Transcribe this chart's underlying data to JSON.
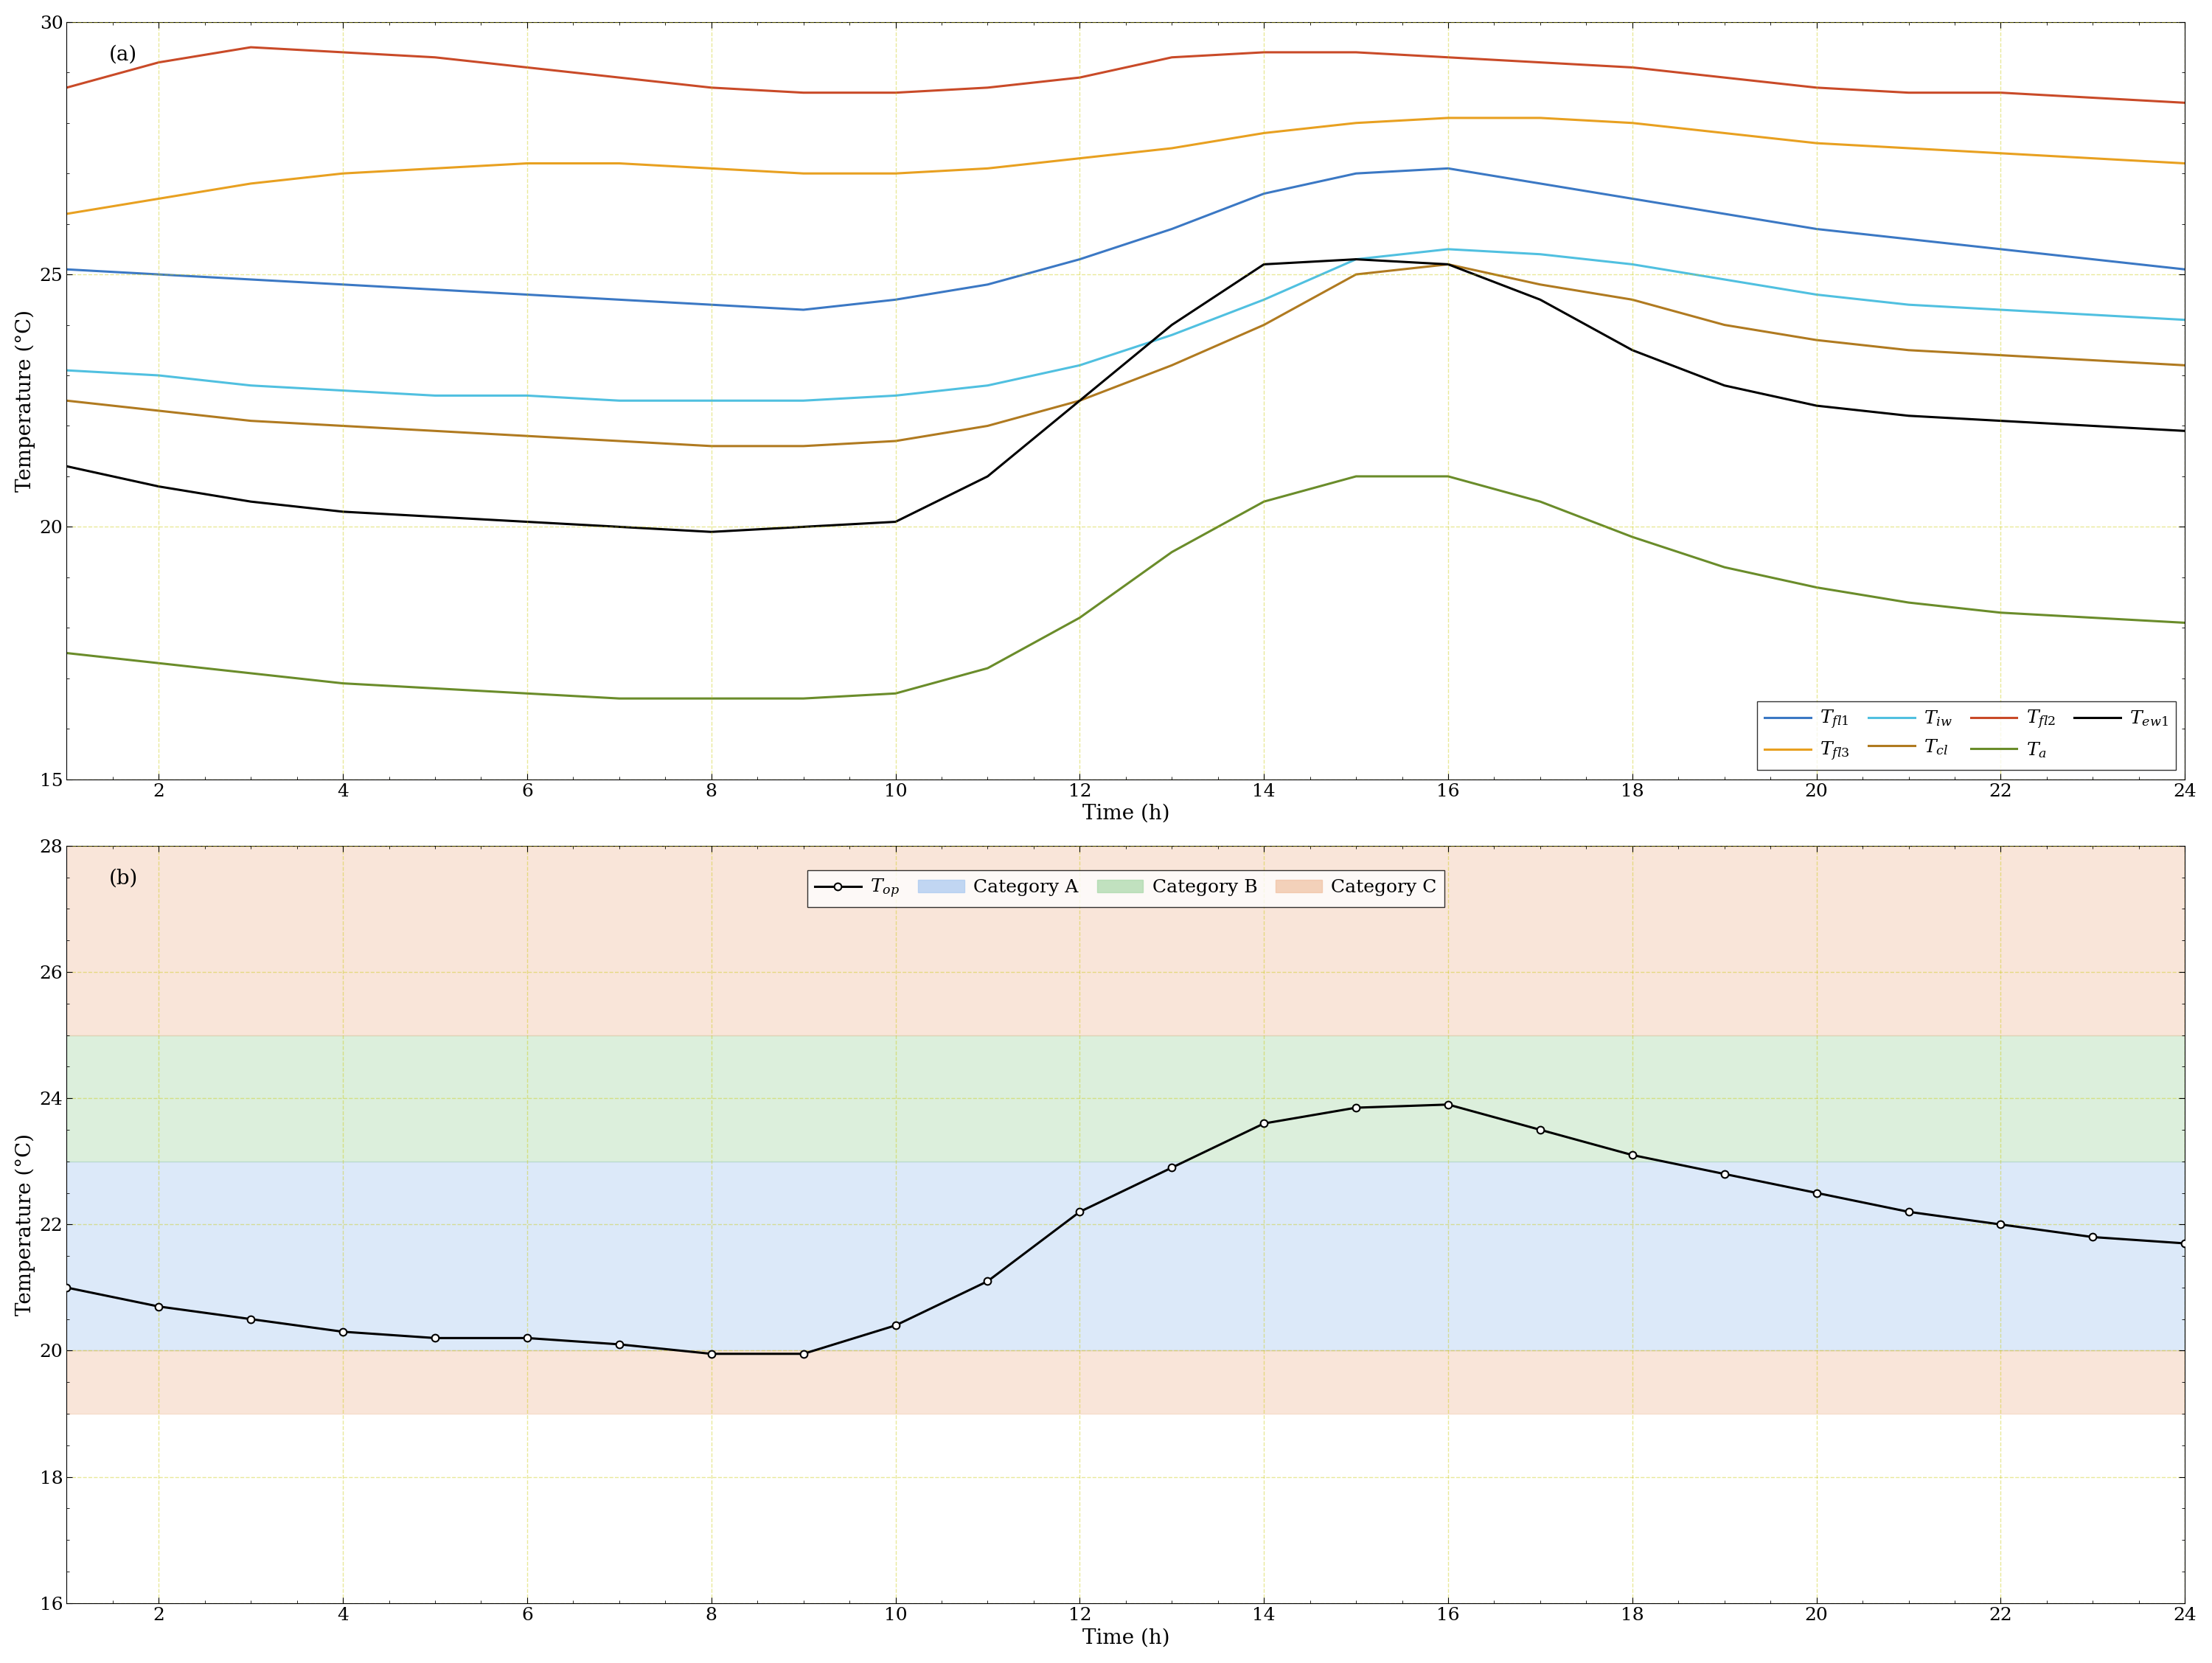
{
  "panel_a": {
    "title": "(a)",
    "xlabel": "Time (h)",
    "ylabel": "Temperature (°C)",
    "xlim": [
      1,
      24
    ],
    "ylim": [
      15,
      30
    ],
    "xticks": [
      2,
      4,
      6,
      8,
      10,
      12,
      14,
      16,
      18,
      20,
      22,
      24
    ],
    "yticks": [
      15,
      20,
      25,
      30
    ],
    "series": {
      "T_fl1": {
        "color": "#3b78c4",
        "label": "$T_{fl1}$",
        "x": [
          1,
          2,
          3,
          4,
          5,
          6,
          7,
          8,
          9,
          10,
          11,
          12,
          13,
          14,
          15,
          16,
          17,
          18,
          19,
          20,
          21,
          22,
          23,
          24
        ],
        "y": [
          25.1,
          25.0,
          24.9,
          24.8,
          24.7,
          24.6,
          24.5,
          24.4,
          24.3,
          24.5,
          24.8,
          25.3,
          25.9,
          26.6,
          27.0,
          27.1,
          26.8,
          26.5,
          26.2,
          25.9,
          25.7,
          25.5,
          25.3,
          25.1
        ]
      },
      "T_fl2": {
        "color": "#c94a28",
        "label": "$T_{fl2}$",
        "x": [
          1,
          2,
          3,
          4,
          5,
          6,
          7,
          8,
          9,
          10,
          11,
          12,
          13,
          14,
          15,
          16,
          17,
          18,
          19,
          20,
          21,
          22,
          23,
          24
        ],
        "y": [
          28.7,
          29.2,
          29.5,
          29.4,
          29.3,
          29.1,
          28.9,
          28.7,
          28.6,
          28.6,
          28.7,
          28.9,
          29.3,
          29.4,
          29.4,
          29.3,
          29.2,
          29.1,
          28.9,
          28.7,
          28.6,
          28.6,
          28.5,
          28.4
        ]
      },
      "T_fl3": {
        "color": "#e8a020",
        "label": "$T_{fl3}$",
        "x": [
          1,
          2,
          3,
          4,
          5,
          6,
          7,
          8,
          9,
          10,
          11,
          12,
          13,
          14,
          15,
          16,
          17,
          18,
          19,
          20,
          21,
          22,
          23,
          24
        ],
        "y": [
          26.2,
          26.5,
          26.8,
          27.0,
          27.1,
          27.2,
          27.2,
          27.1,
          27.0,
          27.0,
          27.1,
          27.3,
          27.5,
          27.8,
          28.0,
          28.1,
          28.1,
          28.0,
          27.8,
          27.6,
          27.5,
          27.4,
          27.3,
          27.2
        ]
      },
      "T_iw": {
        "color": "#50c0e0",
        "label": "$T_{iw}$",
        "x": [
          1,
          2,
          3,
          4,
          5,
          6,
          7,
          8,
          9,
          10,
          11,
          12,
          13,
          14,
          15,
          16,
          17,
          18,
          19,
          20,
          21,
          22,
          23,
          24
        ],
        "y": [
          23.1,
          23.0,
          22.8,
          22.7,
          22.6,
          22.6,
          22.5,
          22.5,
          22.5,
          22.6,
          22.8,
          23.2,
          23.8,
          24.5,
          25.3,
          25.5,
          25.4,
          25.2,
          24.9,
          24.6,
          24.4,
          24.3,
          24.2,
          24.1
        ]
      },
      "T_cl": {
        "color": "#b07a20",
        "label": "$T_{cl}$",
        "x": [
          1,
          2,
          3,
          4,
          5,
          6,
          7,
          8,
          9,
          10,
          11,
          12,
          13,
          14,
          15,
          16,
          17,
          18,
          19,
          20,
          21,
          22,
          23,
          24
        ],
        "y": [
          22.5,
          22.3,
          22.1,
          22.0,
          21.9,
          21.8,
          21.7,
          21.6,
          21.6,
          21.7,
          22.0,
          22.5,
          23.2,
          24.0,
          25.0,
          25.2,
          24.8,
          24.5,
          24.0,
          23.7,
          23.5,
          23.4,
          23.3,
          23.2
        ]
      },
      "T_a": {
        "color": "#6a8c2a",
        "label": "$T_{a}$",
        "x": [
          1,
          2,
          3,
          4,
          5,
          6,
          7,
          8,
          9,
          10,
          11,
          12,
          13,
          14,
          15,
          16,
          17,
          18,
          19,
          20,
          21,
          22,
          23,
          24
        ],
        "y": [
          17.5,
          17.3,
          17.1,
          16.9,
          16.8,
          16.7,
          16.6,
          16.6,
          16.6,
          16.7,
          17.2,
          18.2,
          19.5,
          20.5,
          21.0,
          21.0,
          20.5,
          19.8,
          19.2,
          18.8,
          18.5,
          18.3,
          18.2,
          18.1
        ]
      },
      "T_ew1": {
        "color": "#000000",
        "label": "$T_{ew1}$",
        "x": [
          1,
          2,
          3,
          4,
          5,
          6,
          7,
          8,
          9,
          10,
          11,
          12,
          13,
          14,
          15,
          16,
          17,
          18,
          19,
          20,
          21,
          22,
          23,
          24
        ],
        "y": [
          21.2,
          20.8,
          20.5,
          20.3,
          20.2,
          20.1,
          20.0,
          19.9,
          20.0,
          20.1,
          21.0,
          22.5,
          24.0,
          25.2,
          25.3,
          25.2,
          24.5,
          23.5,
          22.8,
          22.4,
          22.2,
          22.1,
          22.0,
          21.9
        ]
      }
    }
  },
  "panel_b": {
    "title": "(b)",
    "xlabel": "Time (h)",
    "ylabel": "Temperature (°C)",
    "xlim": [
      1,
      24
    ],
    "ylim": [
      16,
      28
    ],
    "xticks": [
      2,
      4,
      6,
      8,
      10,
      12,
      14,
      16,
      18,
      20,
      22,
      24
    ],
    "yticks": [
      16,
      18,
      20,
      22,
      24,
      26,
      28
    ],
    "T_op": {
      "color": "#000000",
      "label": "$T_{op}$",
      "x": [
        1,
        2,
        3,
        4,
        5,
        6,
        7,
        8,
        9,
        10,
        11,
        12,
        13,
        14,
        15,
        16,
        17,
        18,
        19,
        20,
        21,
        22,
        23,
        24
      ],
      "y": [
        21.0,
        20.7,
        20.5,
        20.3,
        20.2,
        20.2,
        20.1,
        19.95,
        19.95,
        20.4,
        21.1,
        22.2,
        22.9,
        23.6,
        23.85,
        23.9,
        23.5,
        23.1,
        22.8,
        22.5,
        22.2,
        22.0,
        21.8,
        21.7
      ]
    },
    "categories": {
      "A": {
        "ymin": 20.0,
        "ymax": 23.0,
        "color": "#a8c8f0",
        "alpha": 0.4,
        "label": "Category A"
      },
      "B": {
        "ymin": 23.0,
        "ymax": 25.0,
        "color": "#a8d8a8",
        "alpha": 0.4,
        "label": "Category B"
      },
      "C_low": {
        "ymin": 19.0,
        "ymax": 20.0,
        "color": "#f0c0a0",
        "alpha": 0.4
      },
      "C_high": {
        "ymin": 25.0,
        "ymax": 28.0,
        "color": "#f0c0a0",
        "alpha": 0.4,
        "label": "Category C"
      }
    }
  },
  "grid_color": "#c8c800",
  "grid_alpha": 0.4,
  "grid_linestyle": "--",
  "linewidth": 2.2,
  "font_family": "serif",
  "tick_labelsize": 18,
  "label_fontsize": 20,
  "legend_fontsize": 18,
  "title_fontsize": 20
}
